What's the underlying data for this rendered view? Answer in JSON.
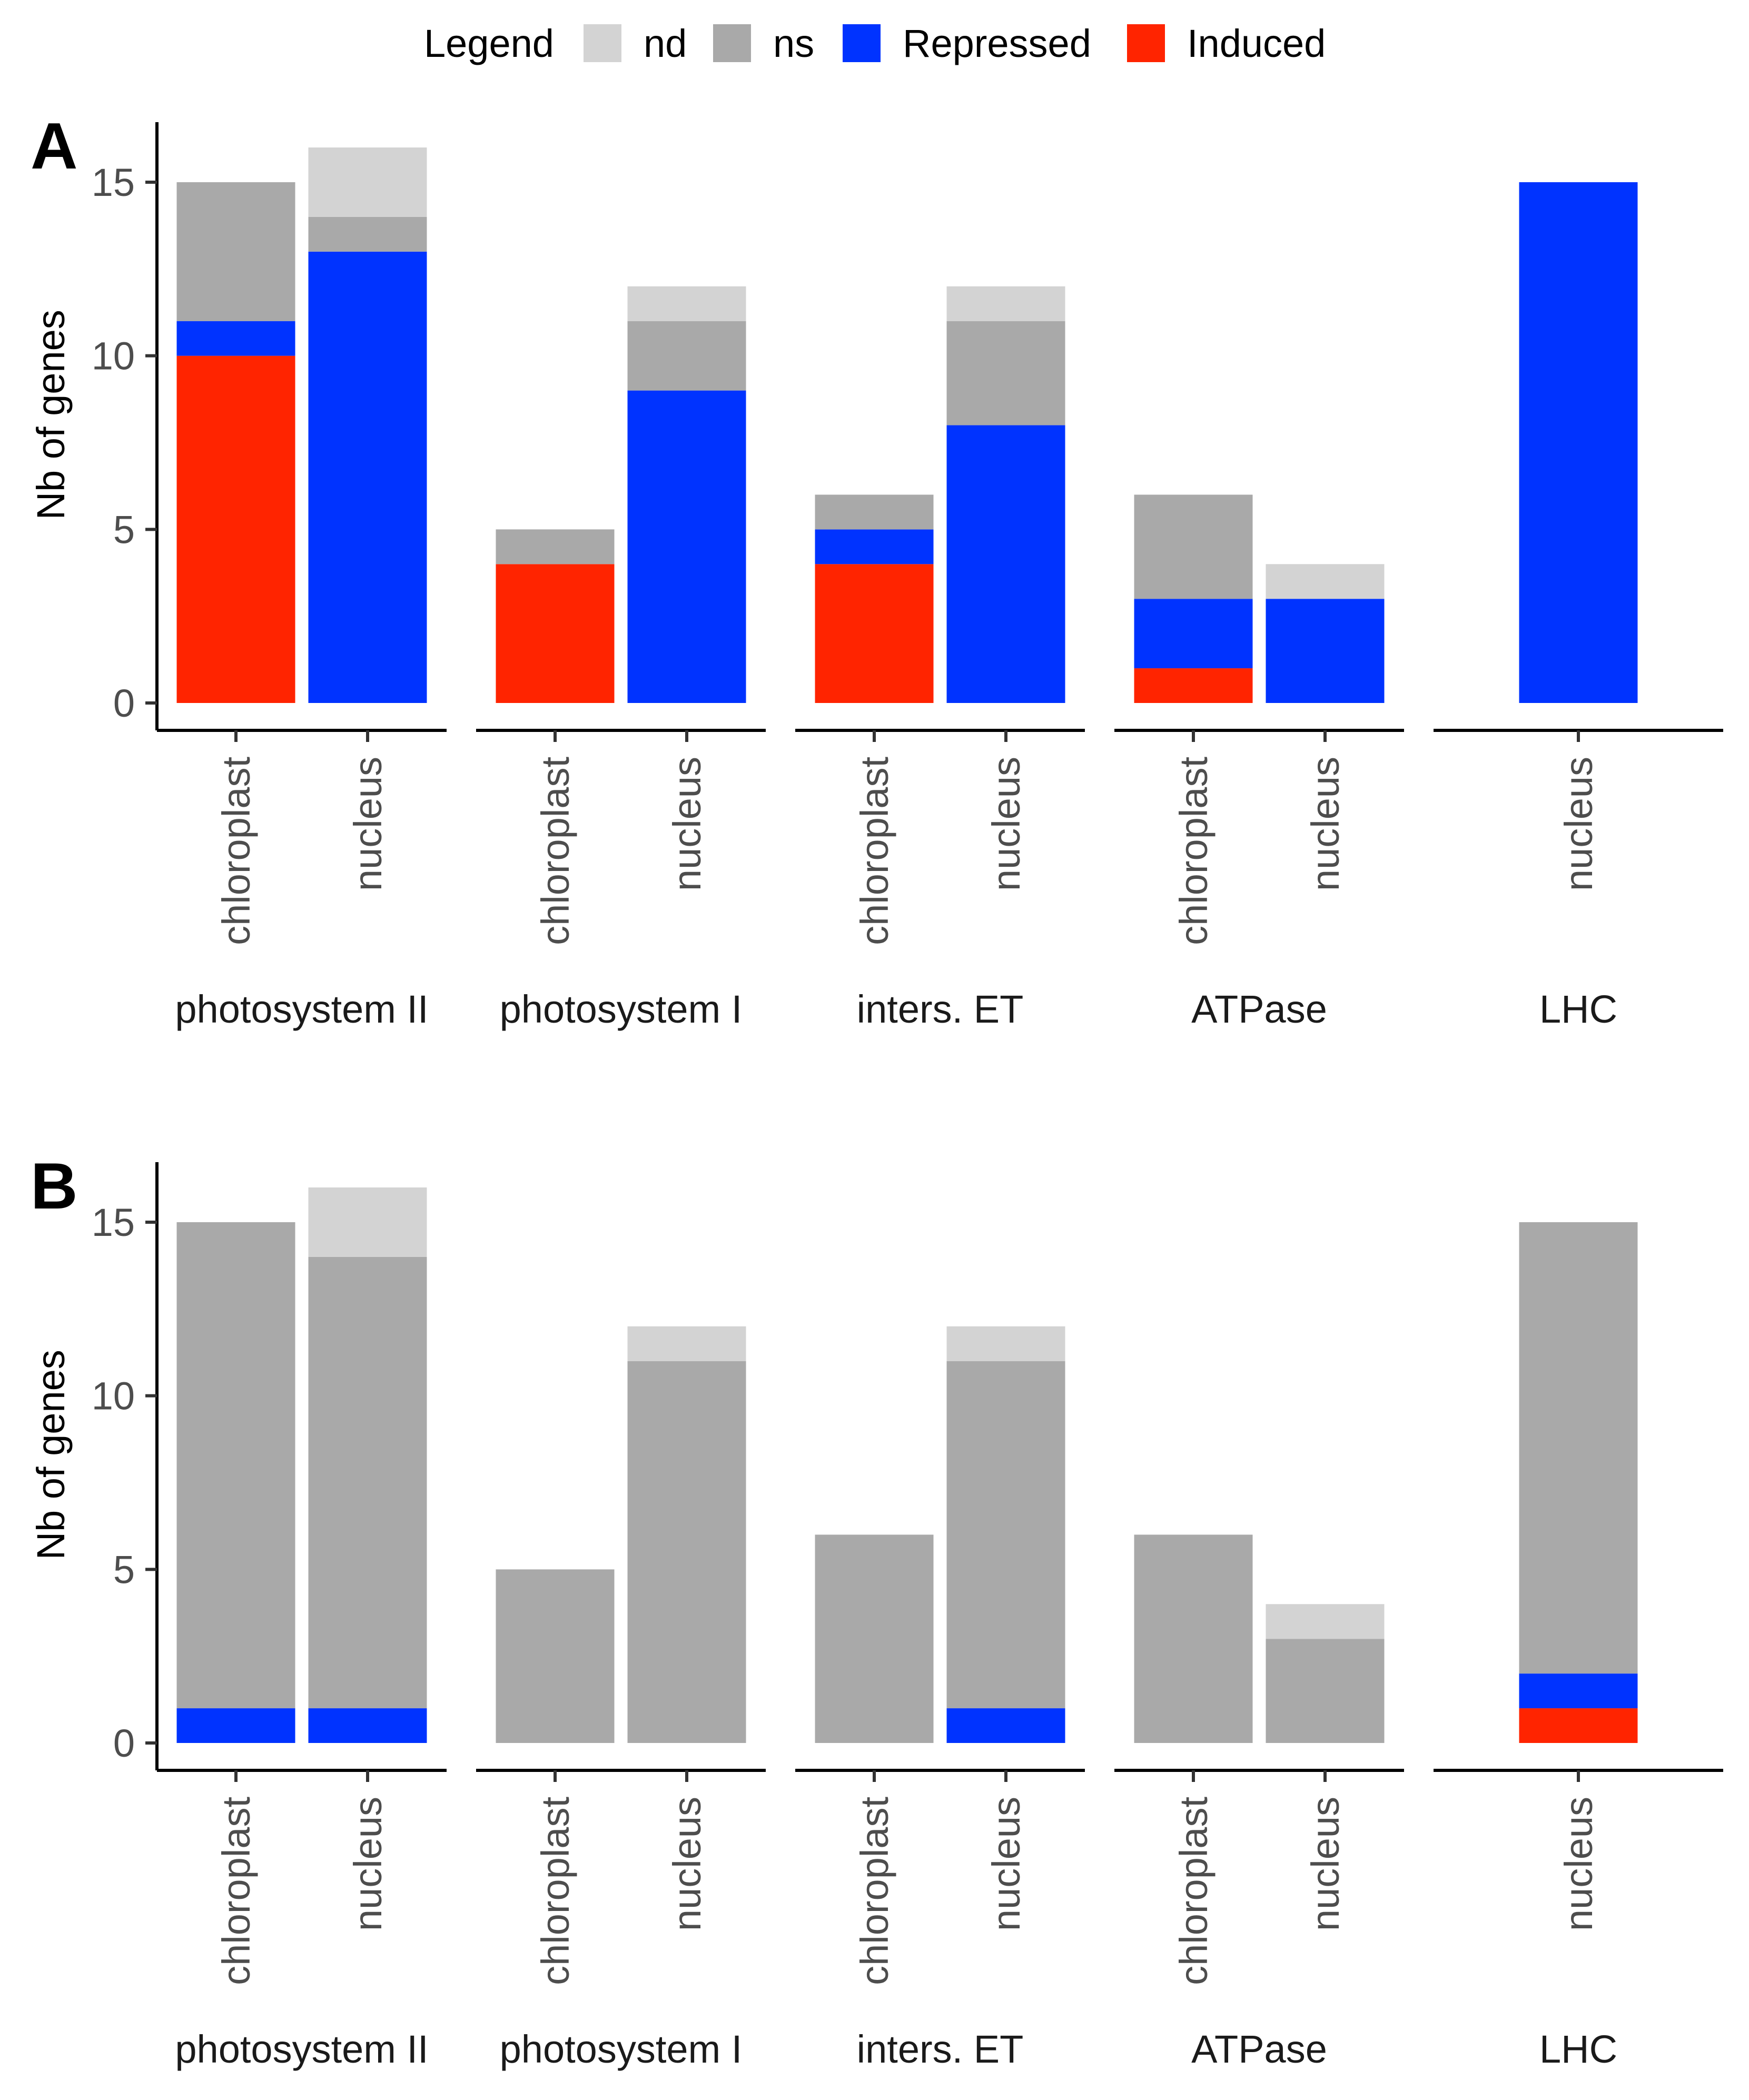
{
  "chart_data": {
    "type": "bar",
    "stacked": true,
    "legend": {
      "title": "Legend",
      "position": "top",
      "entries": [
        {
          "key": "nd",
          "label": "nd",
          "color": "#d3d3d3"
        },
        {
          "key": "ns",
          "label": "ns",
          "color": "#a9a9a9"
        },
        {
          "key": "repressed",
          "label": "Repressed",
          "color": "#0033ff"
        },
        {
          "key": "induced",
          "label": "Induced",
          "color": "#ff2400"
        }
      ]
    },
    "stack_order_bottom_to_top": [
      "induced",
      "repressed",
      "ns",
      "nd"
    ],
    "ylabel": "Nb of genes",
    "ylim": [
      0,
      16.6
    ],
    "yticks": [
      0,
      5,
      10,
      15
    ],
    "groups": [
      {
        "label": "photosystem II",
        "categories": [
          "chloroplast",
          "nucleus"
        ]
      },
      {
        "label": "photosystem I",
        "categories": [
          "chloroplast",
          "nucleus"
        ]
      },
      {
        "label": "inters. ET",
        "categories": [
          "chloroplast",
          "nucleus"
        ]
      },
      {
        "label": "ATPase",
        "categories": [
          "chloroplast",
          "nucleus"
        ]
      },
      {
        "label": "LHC",
        "categories": [
          "nucleus"
        ]
      }
    ],
    "panels": [
      {
        "tag": "A",
        "bars": [
          [
            {
              "induced": 10,
              "repressed": 1,
              "ns": 4,
              "nd": 0
            },
            {
              "induced": 0,
              "repressed": 13,
              "ns": 1,
              "nd": 2
            }
          ],
          [
            {
              "induced": 4,
              "repressed": 0,
              "ns": 1,
              "nd": 0
            },
            {
              "induced": 0,
              "repressed": 9,
              "ns": 2,
              "nd": 1
            }
          ],
          [
            {
              "induced": 4,
              "repressed": 1,
              "ns": 1,
              "nd": 0
            },
            {
              "induced": 0,
              "repressed": 8,
              "ns": 3,
              "nd": 1
            }
          ],
          [
            {
              "induced": 1,
              "repressed": 2,
              "ns": 3,
              "nd": 0
            },
            {
              "induced": 0,
              "repressed": 3,
              "ns": 0,
              "nd": 1
            }
          ],
          [
            {
              "induced": 0,
              "repressed": 15,
              "ns": 0,
              "nd": 0
            }
          ]
        ]
      },
      {
        "tag": "B",
        "bars": [
          [
            {
              "induced": 0,
              "repressed": 1,
              "ns": 14,
              "nd": 0
            },
            {
              "induced": 0,
              "repressed": 1,
              "ns": 13,
              "nd": 2
            }
          ],
          [
            {
              "induced": 0,
              "repressed": 0,
              "ns": 5,
              "nd": 0
            },
            {
              "induced": 0,
              "repressed": 0,
              "ns": 11,
              "nd": 1
            }
          ],
          [
            {
              "induced": 0,
              "repressed": 0,
              "ns": 6,
              "nd": 0
            },
            {
              "induced": 0,
              "repressed": 1,
              "ns": 10,
              "nd": 1
            }
          ],
          [
            {
              "induced": 0,
              "repressed": 0,
              "ns": 6,
              "nd": 0
            },
            {
              "induced": 0,
              "repressed": 0,
              "ns": 3,
              "nd": 1
            }
          ],
          [
            {
              "induced": 1,
              "repressed": 1,
              "ns": 13,
              "nd": 0
            }
          ]
        ]
      }
    ]
  }
}
